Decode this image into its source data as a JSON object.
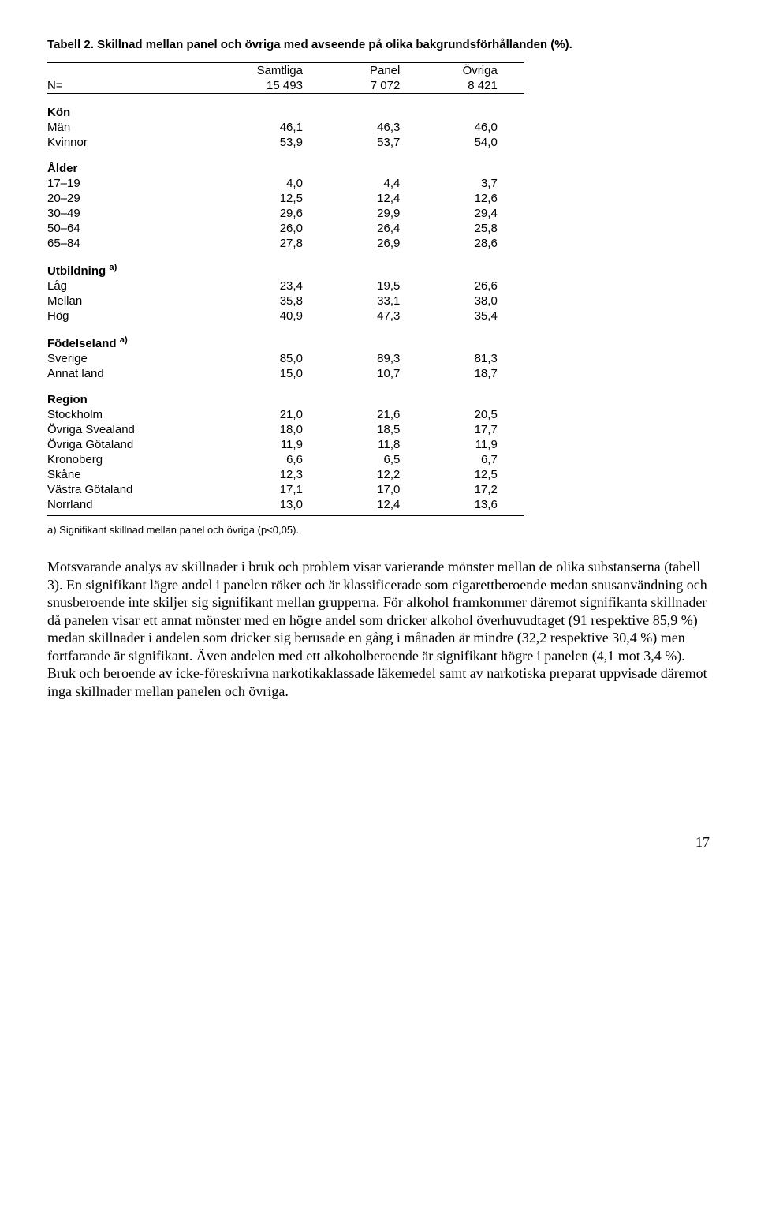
{
  "title": "Tabell 2. Skillnad mellan panel och övriga med avseende på olika bakgrundsförhållanden (%).",
  "header": {
    "lbl": "N=",
    "c1a": "Samtliga",
    "c1b": "15 493",
    "c2a": "Panel",
    "c2b": "7 072",
    "c3a": "Övriga",
    "c3b": "8 421"
  },
  "sections": [
    {
      "heading": "Kön",
      "sup": "",
      "rows": [
        {
          "l": "Män",
          "a": "46,1",
          "b": "46,3",
          "c": "46,0"
        },
        {
          "l": "Kvinnor",
          "a": "53,9",
          "b": "53,7",
          "c": "54,0"
        }
      ]
    },
    {
      "heading": "Ålder",
      "sup": "",
      "rows": [
        {
          "l": "17–19",
          "a": "4,0",
          "b": "4,4",
          "c": "3,7"
        },
        {
          "l": "20–29",
          "a": "12,5",
          "b": "12,4",
          "c": "12,6"
        },
        {
          "l": "30–49",
          "a": "29,6",
          "b": "29,9",
          "c": "29,4"
        },
        {
          "l": "50–64",
          "a": "26,0",
          "b": "26,4",
          "c": "25,8"
        },
        {
          "l": "65–84",
          "a": "27,8",
          "b": "26,9",
          "c": "28,6"
        }
      ]
    },
    {
      "heading": "Utbildning",
      "sup": "a)",
      "rows": [
        {
          "l": "Låg",
          "a": "23,4",
          "b": "19,5",
          "c": "26,6"
        },
        {
          "l": "Mellan",
          "a": "35,8",
          "b": "33,1",
          "c": "38,0"
        },
        {
          "l": "Hög",
          "a": "40,9",
          "b": "47,3",
          "c": "35,4"
        }
      ]
    },
    {
      "heading": "Födelseland",
      "sup": "a)",
      "rows": [
        {
          "l": "Sverige",
          "a": "85,0",
          "b": "89,3",
          "c": "81,3"
        },
        {
          "l": "Annat land",
          "a": "15,0",
          "b": "10,7",
          "c": "18,7"
        }
      ]
    },
    {
      "heading": "Region",
      "sup": "",
      "rows": [
        {
          "l": "Stockholm",
          "a": "21,0",
          "b": "21,6",
          "c": "20,5"
        },
        {
          "l": "Övriga Svealand",
          "a": "18,0",
          "b": "18,5",
          "c": "17,7"
        },
        {
          "l": "Övriga Götaland",
          "a": "11,9",
          "b": "11,8",
          "c": "11,9"
        },
        {
          "l": "Kronoberg",
          "a": "6,6",
          "b": "6,5",
          "c": "6,7"
        },
        {
          "l": "Skåne",
          "a": "12,3",
          "b": "12,2",
          "c": "12,5"
        },
        {
          "l": "Västra Götaland",
          "a": "17,1",
          "b": "17,0",
          "c": "17,2"
        },
        {
          "l": "Norrland",
          "a": "13,0",
          "b": "12,4",
          "c": "13,6"
        }
      ]
    }
  ],
  "footnote": "a) Signifikant skillnad mellan panel och övriga (p<0,05).",
  "body": "Motsvarande analys av skillnader i bruk och problem visar varierande mönster mellan de olika substanserna (tabell 3). En signifikant lägre andel i panelen röker och är klassificerade som cigarettberoende medan snusanvändning och snusberoende inte skiljer sig signifikant mellan grupperna. För alkohol framkommer däremot signifikanta skillnader då panelen visar ett annat mönster med en högre andel som dricker alkohol överhuvudtaget (91 respektive 85,9 %) medan skillnader i andelen som dricker sig berusade en gång i månaden är mindre (32,2 respektive 30,4 %) men fortfarande är signifikant. Även andelen med ett alkoholberoende är signifikant högre i panelen (4,1 mot 3,4 %). Bruk och beroende av icke-föreskrivna narkotikaklassade läkemedel samt av narkotiska preparat uppvisade däremot inga skillnader mellan panelen och övriga.",
  "pageNumber": "17"
}
